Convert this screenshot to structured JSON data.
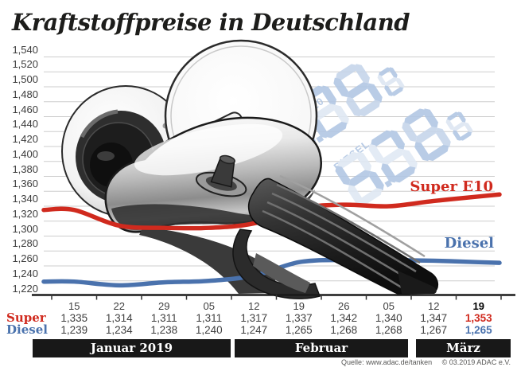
{
  "title": "Kraftstoffpreise in Deutschland",
  "source": {
    "quelle": "Quelle: www.adac.de/tanken",
    "copyright": "© 03.2019  ADAC e.V."
  },
  "watermark": {
    "display_labels": [
      "SUPER E10",
      "DIESEL"
    ]
  },
  "months": [
    {
      "label": "Januar 2019"
    },
    {
      "label": "Februar"
    },
    {
      "label": "März"
    }
  ],
  "table": {
    "row_labels": [
      "Super",
      "Diesel"
    ]
  },
  "chart_data": {
    "type": "line",
    "title": "Kraftstoffpreise in Deutschland",
    "categories": [
      "15",
      "22",
      "29",
      "05",
      "12",
      "19",
      "26",
      "05",
      "12",
      "19"
    ],
    "series": [
      {
        "name": "Super E10",
        "color": "#d02a1e",
        "values": [
          1.335,
          1.314,
          1.311,
          1.311,
          1.317,
          1.337,
          1.342,
          1.34,
          1.347,
          1.353
        ]
      },
      {
        "name": "Diesel",
        "color": "#4a72ad",
        "values": [
          1.239,
          1.234,
          1.238,
          1.24,
          1.247,
          1.265,
          1.268,
          1.268,
          1.267,
          1.265
        ]
      }
    ],
    "ylim": [
      1.22,
      1.54
    ],
    "ytick_step": 0.02,
    "grid": "horizontal",
    "legend_position": "inline-right",
    "month_groups": [
      "Januar 2019",
      "Februar",
      "März"
    ]
  }
}
